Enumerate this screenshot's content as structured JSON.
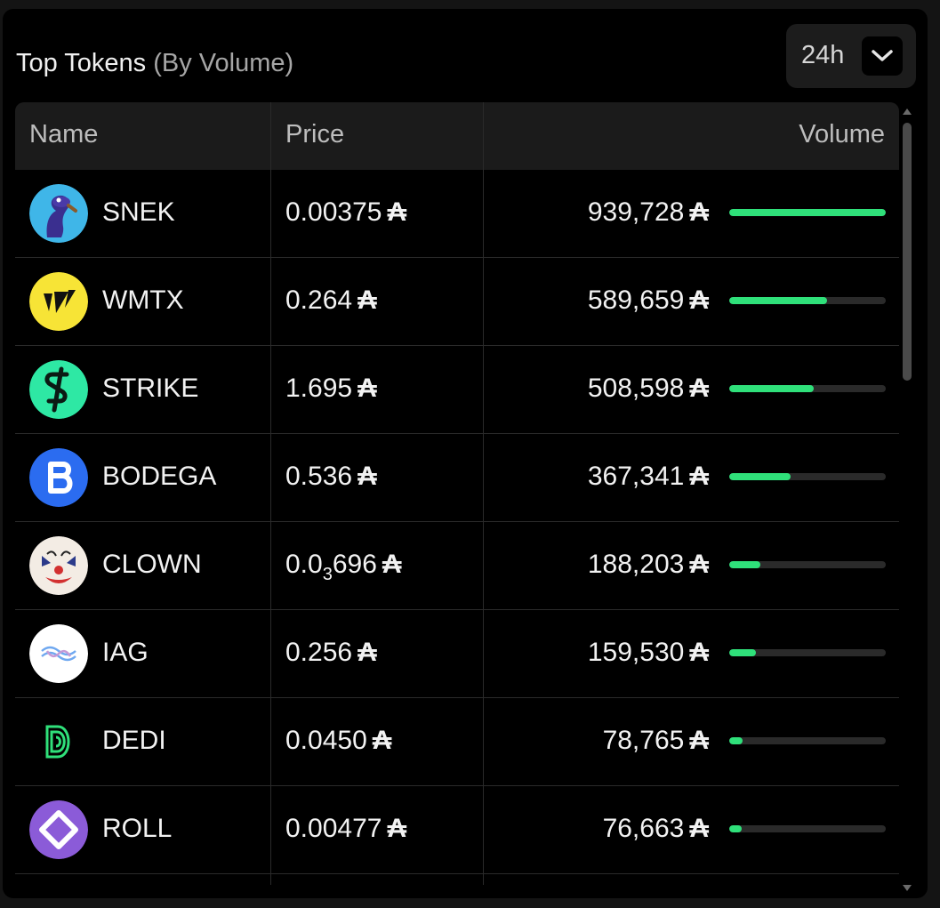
{
  "header": {
    "title": "Top Tokens",
    "subtitle": "(By Volume)",
    "period": "24h"
  },
  "columns": {
    "name": "Name",
    "price": "Price",
    "volume": "Volume"
  },
  "currency_symbol": "₳",
  "colors": {
    "accent": "#2fe07a",
    "panel": "#000000",
    "header": "#1b1b1b"
  },
  "tokens": [
    {
      "name": "SNEK",
      "price": "0.00375",
      "volume": "939,728",
      "volume_ratio": 1.0,
      "icon": "snek-icon"
    },
    {
      "name": "WMTX",
      "price": "0.264",
      "volume": "589,659",
      "volume_ratio": 0.627,
      "icon": "wmtx-icon"
    },
    {
      "name": "STRIKE",
      "price": "1.695",
      "volume": "508,598",
      "volume_ratio": 0.541,
      "icon": "strike-icon"
    },
    {
      "name": "BODEGA",
      "price": "0.536",
      "volume": "367,341",
      "volume_ratio": 0.391,
      "icon": "bodega-icon"
    },
    {
      "name": "CLOWN",
      "price_prefix": "0.0",
      "price_sub": "3",
      "price_suffix": "696",
      "volume": "188,203",
      "volume_ratio": 0.2,
      "icon": "clown-icon"
    },
    {
      "name": "IAG",
      "price": "0.256",
      "volume": "159,530",
      "volume_ratio": 0.17,
      "icon": "iag-icon"
    },
    {
      "name": "DEDI",
      "price": "0.0450",
      "volume": "78,765",
      "volume_ratio": 0.084,
      "icon": "dedi-icon"
    },
    {
      "name": "ROLL",
      "price": "0.00477",
      "volume": "76,663",
      "volume_ratio": 0.082,
      "icon": "roll-icon"
    }
  ]
}
